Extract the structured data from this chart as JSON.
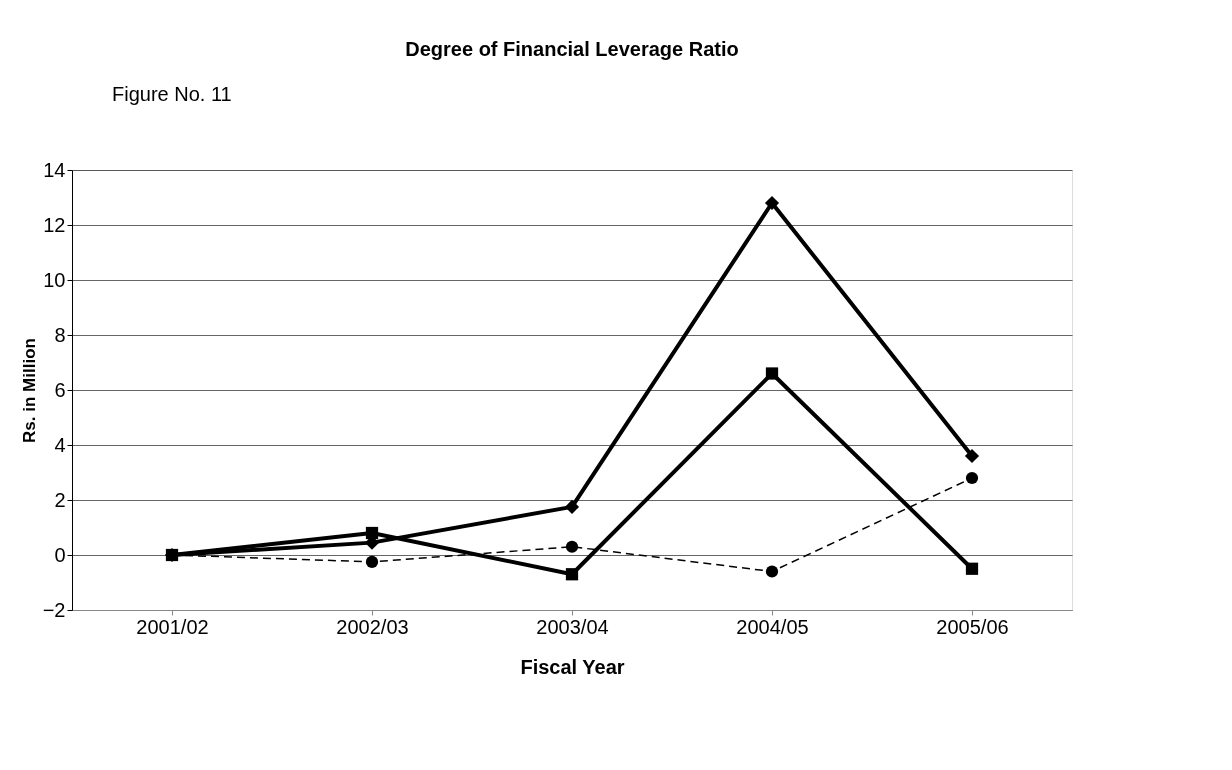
{
  "chart_data": {
    "type": "line",
    "title": "Degree of Financial Leverage Ratio",
    "annotations": [
      "Figure No. 11"
    ],
    "xlabel": "Fiscal Year",
    "ylabel": "Rs. in Million",
    "categories": [
      "2001/02",
      "2002/03",
      "2003/04",
      "2004/05",
      "2005/06"
    ],
    "series": [
      {
        "color": "#000000",
        "marker": "diamond",
        "line_style": "solid",
        "values": [
          0,
          0.45,
          1.75,
          12.8,
          3.6
        ]
      },
      {
        "color": "#000000",
        "marker": "square",
        "line_style": "solid",
        "values": [
          0,
          0.8,
          -0.7,
          6.6,
          -0.5
        ]
      },
      {
        "color": "#000000",
        "marker": "circle",
        "line_style": "dashed",
        "values": [
          0,
          -0.25,
          0.3,
          -0.6,
          2.8
        ]
      }
    ],
    "ylim": [
      -2,
      14
    ],
    "yticks": [
      -2,
      0,
      2,
      4,
      6,
      8,
      10,
      12,
      14
    ],
    "grid": "y",
    "legend": false
  }
}
